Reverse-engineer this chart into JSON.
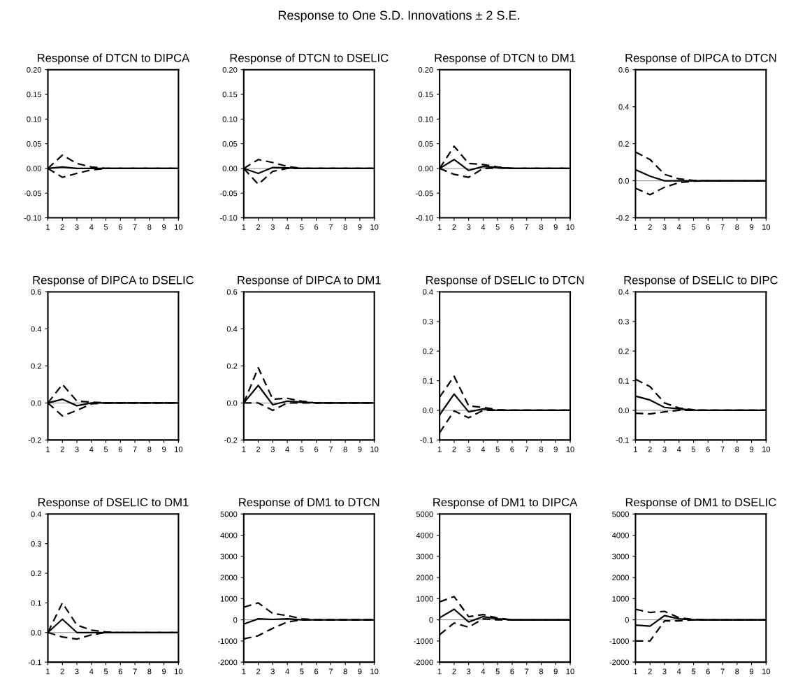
{
  "chart_data": [
    {
      "type": "line",
      "title": "Response of DTCN to DIPCA",
      "annotations": [
        "Response to One S.D. Innovations ± 2 S.E."
      ],
      "x": [
        1,
        2,
        3,
        4,
        5,
        6,
        7,
        8,
        9,
        10
      ],
      "xlim": [
        1,
        10
      ],
      "xticks": [
        1,
        2,
        3,
        4,
        5,
        6,
        7,
        8,
        9,
        10
      ],
      "ylim": [
        -0.1,
        0.2
      ],
      "yticks": [
        {
          "value": -0.1,
          "label": "-0.10"
        },
        {
          "value": -0.05,
          "label": "-0.05"
        },
        {
          "value": 0,
          "label": "0.00"
        },
        {
          "value": 0.05,
          "label": "0.05"
        },
        {
          "value": 0.1,
          "label": "0.10"
        },
        {
          "value": 0.15,
          "label": "0.15"
        },
        {
          "value": 0.2,
          "label": "0.20"
        }
      ],
      "ref_lines": [
        {
          "axis": "y",
          "value": 0,
          "color": "#888888"
        }
      ],
      "series": [
        {
          "color": "#000000",
          "line_style": "solid",
          "values": [
            0,
            0.003,
            0,
            0,
            0,
            0,
            0,
            0,
            0,
            0
          ]
        },
        {
          "color": "#000000",
          "line_style": "dashed",
          "values": [
            0,
            0.027,
            0.01,
            0.003,
            0,
            0,
            0,
            0,
            0,
            0
          ]
        },
        {
          "color": "#000000",
          "line_style": "dashed",
          "values": [
            0,
            -0.018,
            -0.01,
            -0.003,
            0,
            0,
            0,
            0,
            0,
            0
          ]
        }
      ]
    },
    {
      "type": "line",
      "title": "Response of DTCN to DSELIC",
      "x": [
        1,
        2,
        3,
        4,
        5,
        6,
        7,
        8,
        9,
        10
      ],
      "xlim": [
        1,
        10
      ],
      "xticks": [
        1,
        2,
        3,
        4,
        5,
        6,
        7,
        8,
        9,
        10
      ],
      "ylim": [
        -0.1,
        0.2
      ],
      "yticks": [
        {
          "value": -0.1,
          "label": "-0.10"
        },
        {
          "value": -0.05,
          "label": "-0.05"
        },
        {
          "value": 0,
          "label": "0.00"
        },
        {
          "value": 0.05,
          "label": "0.05"
        },
        {
          "value": 0.1,
          "label": "0.10"
        },
        {
          "value": 0.15,
          "label": "0.15"
        },
        {
          "value": 0.2,
          "label": "0.20"
        }
      ],
      "ref_lines": [
        {
          "axis": "y",
          "value": 0,
          "color": "#888888"
        }
      ],
      "series": [
        {
          "color": "#000000",
          "line_style": "solid",
          "values": [
            0,
            -0.01,
            0.002,
            0.001,
            0,
            0,
            0,
            0,
            0,
            0
          ]
        },
        {
          "color": "#000000",
          "line_style": "dashed",
          "values": [
            0,
            0.018,
            0.012,
            0.004,
            0,
            0,
            0,
            0,
            0,
            0
          ]
        },
        {
          "color": "#000000",
          "line_style": "dashed",
          "values": [
            0,
            -0.032,
            -0.006,
            0,
            0,
            0,
            0,
            0,
            0,
            0
          ]
        }
      ]
    },
    {
      "type": "line",
      "title": "Response of DTCN to DM1",
      "x": [
        1,
        2,
        3,
        4,
        5,
        6,
        7,
        8,
        9,
        10
      ],
      "xlim": [
        1,
        10
      ],
      "xticks": [
        1,
        2,
        3,
        4,
        5,
        6,
        7,
        8,
        9,
        10
      ],
      "ylim": [
        -0.1,
        0.2
      ],
      "yticks": [
        {
          "value": -0.1,
          "label": "-0.10"
        },
        {
          "value": -0.05,
          "label": "-0.05"
        },
        {
          "value": 0,
          "label": "0.00"
        },
        {
          "value": 0.05,
          "label": "0.05"
        },
        {
          "value": 0.1,
          "label": "0.10"
        },
        {
          "value": 0.15,
          "label": "0.15"
        },
        {
          "value": 0.2,
          "label": "0.20"
        }
      ],
      "ref_lines": [
        {
          "axis": "y",
          "value": 0,
          "color": "#888888"
        }
      ],
      "series": [
        {
          "color": "#000000",
          "line_style": "solid",
          "values": [
            0,
            0.018,
            -0.004,
            0.004,
            0.002,
            0,
            0,
            0,
            0,
            0
          ]
        },
        {
          "color": "#000000",
          "line_style": "dashed",
          "values": [
            0,
            0.045,
            0.01,
            0.008,
            0.003,
            0,
            0,
            0,
            0,
            0
          ]
        },
        {
          "color": "#000000",
          "line_style": "dashed",
          "values": [
            0,
            -0.012,
            -0.018,
            0,
            0.001,
            0,
            0,
            0,
            0,
            0
          ]
        }
      ]
    },
    {
      "type": "line",
      "title": "Response of DIPCA to DTCN",
      "x": [
        1,
        2,
        3,
        4,
        5,
        6,
        7,
        8,
        9,
        10
      ],
      "xlim": [
        1,
        10
      ],
      "xticks": [
        1,
        2,
        3,
        4,
        5,
        6,
        7,
        8,
        9,
        10
      ],
      "ylim": [
        -0.2,
        0.6
      ],
      "yticks": [
        {
          "value": -0.2,
          "label": "-0.2"
        },
        {
          "value": 0,
          "label": "0.0"
        },
        {
          "value": 0.2,
          "label": "0.2"
        },
        {
          "value": 0.4,
          "label": "0.4"
        },
        {
          "value": 0.6,
          "label": "0.6"
        }
      ],
      "ref_lines": [
        {
          "axis": "y",
          "value": 0,
          "color": "#888888"
        }
      ],
      "series": [
        {
          "color": "#000000",
          "line_style": "solid",
          "values": [
            0.06,
            0.025,
            0,
            0,
            0,
            0,
            0,
            0,
            0,
            0
          ]
        },
        {
          "color": "#000000",
          "line_style": "dashed",
          "values": [
            0.155,
            0.115,
            0.035,
            0.01,
            0.002,
            0,
            0,
            0,
            0,
            0
          ]
        },
        {
          "color": "#000000",
          "line_style": "dashed",
          "values": [
            -0.04,
            -0.075,
            -0.035,
            -0.01,
            -0.002,
            0,
            0,
            0,
            0,
            0
          ]
        }
      ]
    },
    {
      "type": "line",
      "title": "Response of DIPCA to DSELIC",
      "x": [
        1,
        2,
        3,
        4,
        5,
        6,
        7,
        8,
        9,
        10
      ],
      "xlim": [
        1,
        10
      ],
      "xticks": [
        1,
        2,
        3,
        4,
        5,
        6,
        7,
        8,
        9,
        10
      ],
      "ylim": [
        -0.2,
        0.6
      ],
      "yticks": [
        {
          "value": -0.2,
          "label": "-0.2"
        },
        {
          "value": 0,
          "label": "0.0"
        },
        {
          "value": 0.2,
          "label": "0.2"
        },
        {
          "value": 0.4,
          "label": "0.4"
        },
        {
          "value": 0.6,
          "label": "0.6"
        }
      ],
      "ref_lines": [
        {
          "axis": "y",
          "value": 0,
          "color": "#888888"
        }
      ],
      "series": [
        {
          "color": "#000000",
          "line_style": "solid",
          "values": [
            0,
            0.02,
            -0.015,
            0,
            0,
            0,
            0,
            0,
            0,
            0
          ]
        },
        {
          "color": "#000000",
          "line_style": "dashed",
          "values": [
            0,
            0.1,
            0.01,
            0.005,
            0,
            0,
            0,
            0,
            0,
            0
          ]
        },
        {
          "color": "#000000",
          "line_style": "dashed",
          "values": [
            0,
            -0.07,
            -0.04,
            -0.005,
            0,
            0,
            0,
            0,
            0,
            0
          ]
        }
      ]
    },
    {
      "type": "line",
      "title": "Response of DIPCA to DM1",
      "x": [
        1,
        2,
        3,
        4,
        5,
        6,
        7,
        8,
        9,
        10
      ],
      "xlim": [
        1,
        10
      ],
      "xticks": [
        1,
        2,
        3,
        4,
        5,
        6,
        7,
        8,
        9,
        10
      ],
      "ylim": [
        -0.2,
        0.6
      ],
      "yticks": [
        {
          "value": -0.2,
          "label": "-0.2"
        },
        {
          "value": 0,
          "label": "0.0"
        },
        {
          "value": 0.2,
          "label": "0.2"
        },
        {
          "value": 0.4,
          "label": "0.4"
        },
        {
          "value": 0.6,
          "label": "0.6"
        }
      ],
      "ref_lines": [
        {
          "axis": "y",
          "value": 0,
          "color": "#888888"
        }
      ],
      "series": [
        {
          "color": "#000000",
          "line_style": "solid",
          "values": [
            0,
            0.095,
            -0.01,
            0.01,
            0.005,
            0,
            0,
            0,
            0,
            0
          ]
        },
        {
          "color": "#000000",
          "line_style": "dashed",
          "values": [
            0,
            0.19,
            0.02,
            0.025,
            0.01,
            0,
            0,
            0,
            0,
            0
          ]
        },
        {
          "color": "#000000",
          "line_style": "dashed",
          "values": [
            0,
            0,
            -0.04,
            0,
            0,
            0,
            0,
            0,
            0,
            0
          ]
        }
      ]
    },
    {
      "type": "line",
      "title": "Response of DSELIC to DTCN",
      "x": [
        1,
        2,
        3,
        4,
        5,
        6,
        7,
        8,
        9,
        10
      ],
      "xlim": [
        1,
        10
      ],
      "xticks": [
        1,
        2,
        3,
        4,
        5,
        6,
        7,
        8,
        9,
        10
      ],
      "ylim": [
        -0.1,
        0.4
      ],
      "yticks": [
        {
          "value": -0.1,
          "label": "-0.1"
        },
        {
          "value": 0,
          "label": "0.0"
        },
        {
          "value": 0.1,
          "label": "0.1"
        },
        {
          "value": 0.2,
          "label": "0.2"
        },
        {
          "value": 0.3,
          "label": "0.3"
        },
        {
          "value": 0.4,
          "label": "0.4"
        }
      ],
      "ref_lines": [
        {
          "axis": "y",
          "value": 0,
          "color": "#888888"
        }
      ],
      "series": [
        {
          "color": "#000000",
          "line_style": "solid",
          "values": [
            -0.015,
            0.055,
            -0.005,
            0.005,
            0,
            0,
            0,
            0,
            0,
            0
          ]
        },
        {
          "color": "#000000",
          "line_style": "dashed",
          "values": [
            0.045,
            0.115,
            0.015,
            0.01,
            0.002,
            0,
            0,
            0,
            0,
            0
          ]
        },
        {
          "color": "#000000",
          "line_style": "dashed",
          "values": [
            -0.075,
            -0.002,
            -0.025,
            0,
            0,
            0,
            0,
            0,
            0,
            0
          ]
        }
      ]
    },
    {
      "type": "line",
      "title": "Response of DSELIC to DIPC",
      "x": [
        1,
        2,
        3,
        4,
        5,
        6,
        7,
        8,
        9,
        10
      ],
      "xlim": [
        1,
        10
      ],
      "xticks": [
        1,
        2,
        3,
        4,
        5,
        6,
        7,
        8,
        9,
        10
      ],
      "ylim": [
        -0.1,
        0.4
      ],
      "yticks": [
        {
          "value": -0.1,
          "label": "-0.1"
        },
        {
          "value": 0,
          "label": "0.0"
        },
        {
          "value": 0.1,
          "label": "0.1"
        },
        {
          "value": 0.2,
          "label": "0.2"
        },
        {
          "value": 0.3,
          "label": "0.3"
        },
        {
          "value": 0.4,
          "label": "0.4"
        }
      ],
      "ref_lines": [
        {
          "axis": "y",
          "value": 0,
          "color": "#888888"
        }
      ],
      "series": [
        {
          "color": "#000000",
          "line_style": "solid",
          "values": [
            0.048,
            0.035,
            0.01,
            0.005,
            0.001,
            0,
            0,
            0,
            0,
            0
          ]
        },
        {
          "color": "#000000",
          "line_style": "dashed",
          "values": [
            0.105,
            0.08,
            0.025,
            0.008,
            0.002,
            0,
            0,
            0,
            0,
            0
          ]
        },
        {
          "color": "#000000",
          "line_style": "dashed",
          "values": [
            -0.01,
            -0.012,
            -0.005,
            0,
            0,
            0,
            0,
            0,
            0,
            0
          ]
        }
      ]
    },
    {
      "type": "line",
      "title": "Response of DSELIC to DM1",
      "x": [
        1,
        2,
        3,
        4,
        5,
        6,
        7,
        8,
        9,
        10
      ],
      "xlim": [
        1,
        10
      ],
      "xticks": [
        1,
        2,
        3,
        4,
        5,
        6,
        7,
        8,
        9,
        10
      ],
      "ylim": [
        -0.1,
        0.4
      ],
      "yticks": [
        {
          "value": -0.1,
          "label": "-0.1"
        },
        {
          "value": 0,
          "label": "0.0"
        },
        {
          "value": 0.1,
          "label": "0.1"
        },
        {
          "value": 0.2,
          "label": "0.2"
        },
        {
          "value": 0.3,
          "label": "0.3"
        },
        {
          "value": 0.4,
          "label": "0.4"
        }
      ],
      "ref_lines": [
        {
          "axis": "y",
          "value": 0,
          "color": "#888888"
        }
      ],
      "series": [
        {
          "color": "#000000",
          "line_style": "solid",
          "values": [
            0,
            0.045,
            0,
            0,
            0,
            0,
            0,
            0,
            0,
            0
          ]
        },
        {
          "color": "#000000",
          "line_style": "dashed",
          "values": [
            0,
            0.1,
            0.025,
            0.008,
            0.002,
            0,
            0,
            0,
            0,
            0
          ]
        },
        {
          "color": "#000000",
          "line_style": "dashed",
          "values": [
            0,
            -0.015,
            -0.022,
            -0.008,
            0,
            0,
            0,
            0,
            0,
            0
          ]
        }
      ]
    },
    {
      "type": "line",
      "title": "Response of DM1 to DTCN",
      "x": [
        1,
        2,
        3,
        4,
        5,
        6,
        7,
        8,
        9,
        10
      ],
      "xlim": [
        1,
        10
      ],
      "xticks": [
        1,
        2,
        3,
        4,
        5,
        6,
        7,
        8,
        9,
        10
      ],
      "ylim": [
        -2000,
        5000
      ],
      "yticks": [
        -2000,
        -1000,
        0,
        1000,
        2000,
        3000,
        4000,
        5000
      ],
      "ref_lines": [
        {
          "axis": "y",
          "value": 0,
          "color": "#888888"
        }
      ],
      "series": [
        {
          "color": "#000000",
          "line_style": "solid",
          "values": [
            -200,
            50,
            20,
            50,
            0,
            0,
            0,
            0,
            0,
            0
          ]
        },
        {
          "color": "#000000",
          "line_style": "dashed",
          "values": [
            600,
            800,
            300,
            200,
            50,
            0,
            0,
            0,
            0,
            0
          ]
        },
        {
          "color": "#000000",
          "line_style": "dashed",
          "values": [
            -900,
            -750,
            -400,
            -100,
            0,
            0,
            0,
            0,
            0,
            0
          ]
        }
      ]
    },
    {
      "type": "line",
      "title": "Response of DM1 to DIPCA",
      "x": [
        1,
        2,
        3,
        4,
        5,
        6,
        7,
        8,
        9,
        10
      ],
      "xlim": [
        1,
        10
      ],
      "xticks": [
        1,
        2,
        3,
        4,
        5,
        6,
        7,
        8,
        9,
        10
      ],
      "ylim": [
        -2000,
        5000
      ],
      "yticks": [
        -2000,
        -1000,
        0,
        1000,
        2000,
        3000,
        4000,
        5000
      ],
      "ref_lines": [
        {
          "axis": "y",
          "value": 0,
          "color": "#888888"
        }
      ],
      "series": [
        {
          "color": "#000000",
          "line_style": "solid",
          "values": [
            100,
            500,
            -100,
            150,
            50,
            0,
            0,
            0,
            0,
            0
          ]
        },
        {
          "color": "#000000",
          "line_style": "dashed",
          "values": [
            850,
            1100,
            150,
            250,
            80,
            0,
            0,
            0,
            0,
            0
          ]
        },
        {
          "color": "#000000",
          "line_style": "dashed",
          "values": [
            -700,
            -150,
            -350,
            50,
            0,
            0,
            0,
            0,
            0,
            0
          ]
        }
      ]
    },
    {
      "type": "line",
      "title": "Response of DM1 to DSELIC",
      "x": [
        1,
        2,
        3,
        4,
        5,
        6,
        7,
        8,
        9,
        10
      ],
      "xlim": [
        1,
        10
      ],
      "xticks": [
        1,
        2,
        3,
        4,
        5,
        6,
        7,
        8,
        9,
        10
      ],
      "ylim": [
        -2000,
        5000
      ],
      "yticks": [
        -2000,
        -1000,
        0,
        1000,
        2000,
        3000,
        4000,
        5000
      ],
      "ref_lines": [
        {
          "axis": "y",
          "value": 0,
          "color": "#888888"
        }
      ],
      "series": [
        {
          "color": "#000000",
          "line_style": "solid",
          "values": [
            -250,
            -300,
            200,
            50,
            0,
            0,
            0,
            0,
            0,
            0
          ]
        },
        {
          "color": "#000000",
          "line_style": "dashed",
          "values": [
            500,
            350,
            400,
            100,
            20,
            0,
            0,
            0,
            0,
            0
          ]
        },
        {
          "color": "#000000",
          "line_style": "dashed",
          "values": [
            -1000,
            -1000,
            -50,
            -50,
            0,
            0,
            0,
            0,
            0,
            0
          ]
        }
      ]
    }
  ]
}
